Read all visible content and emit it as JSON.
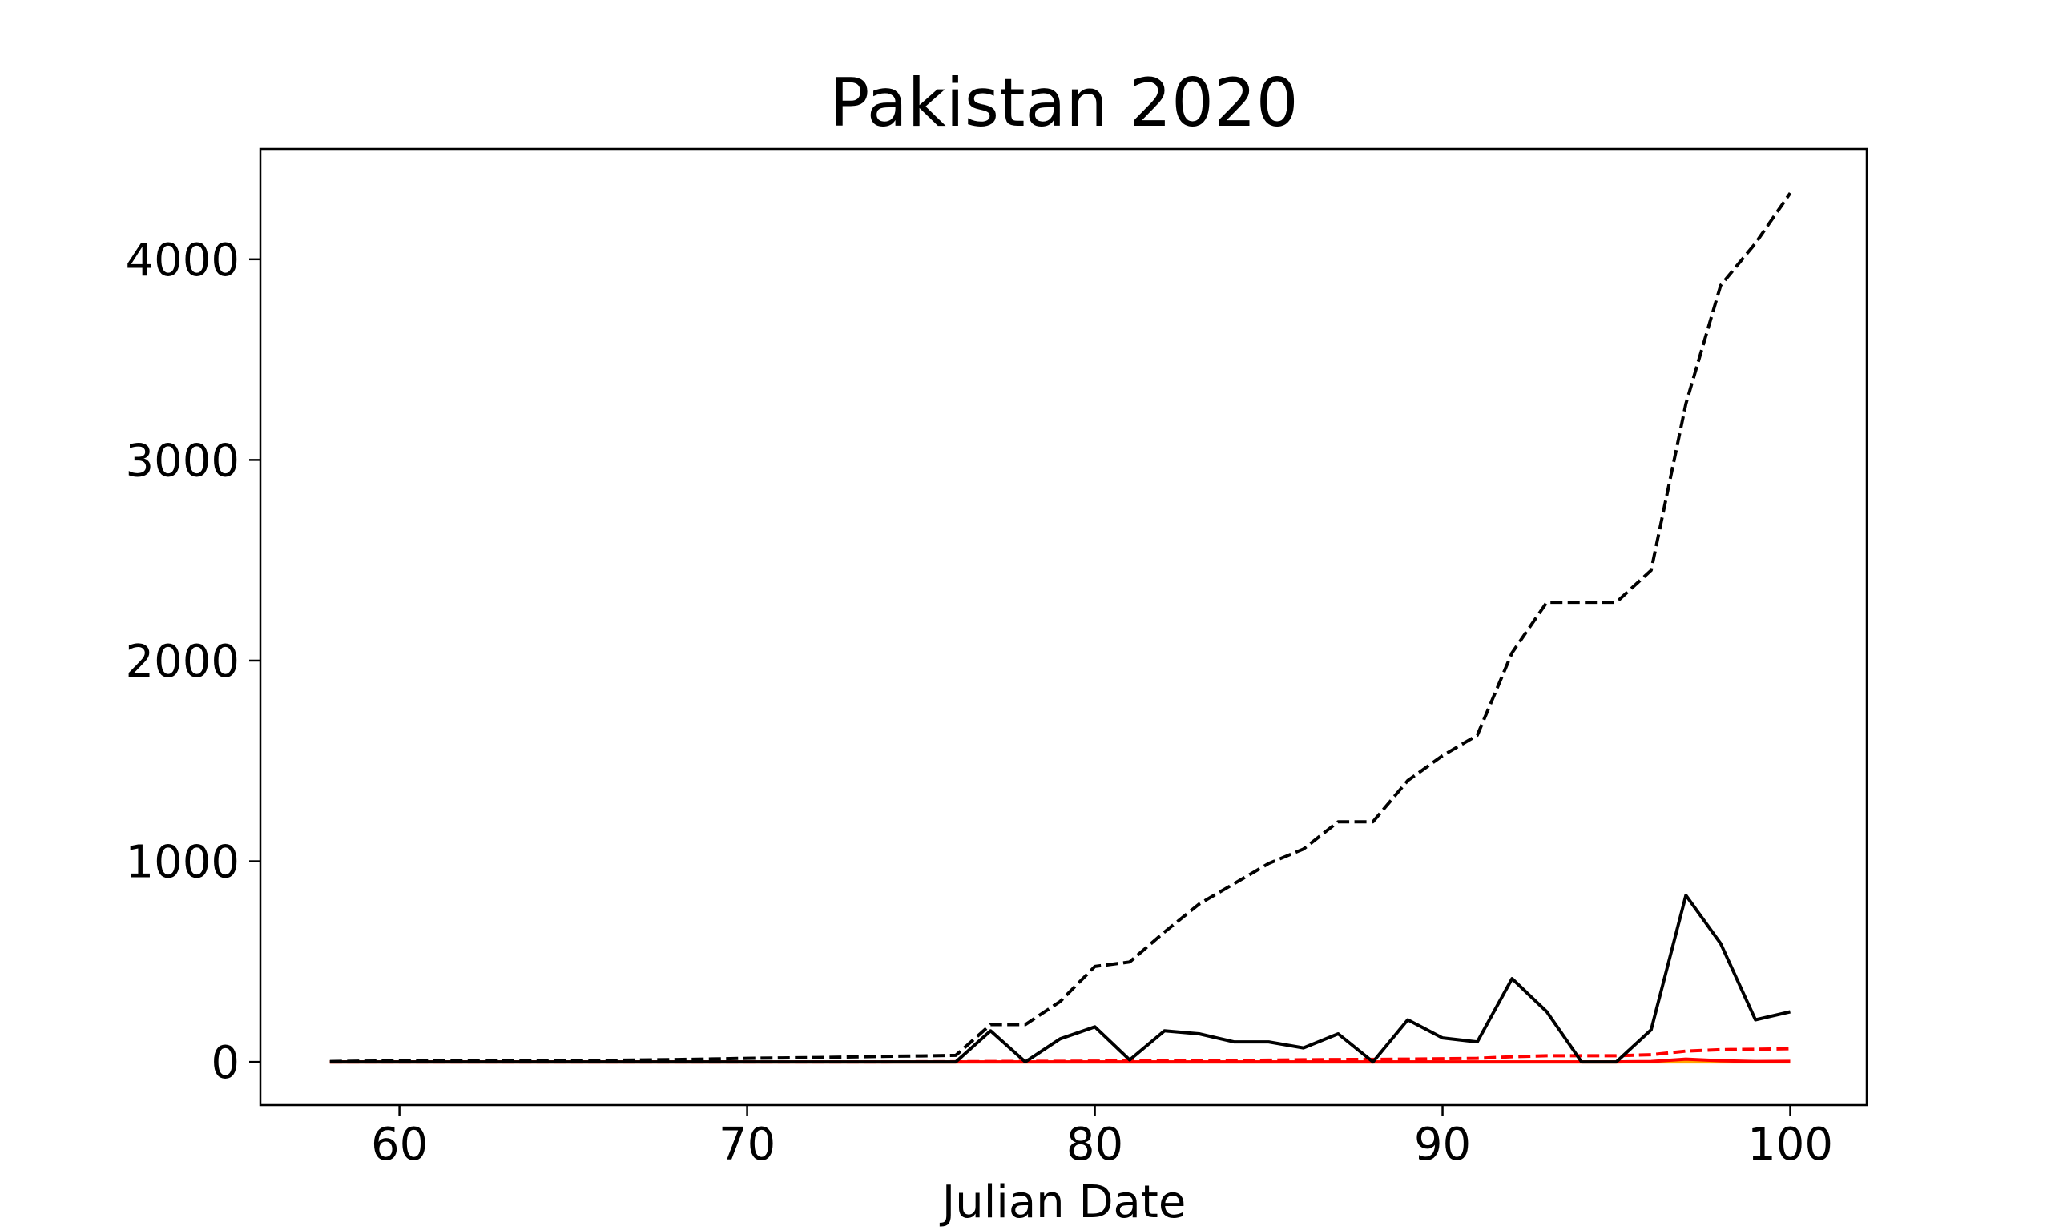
{
  "chart_data": {
    "type": "line",
    "title": "Pakistan 2020",
    "xlabel": "Julian Date",
    "ylabel": "",
    "xlim": [
      56,
      102.2
    ],
    "ylim": [
      -215,
      4550
    ],
    "xticks": [
      60,
      70,
      80,
      90,
      100
    ],
    "yticks": [
      0,
      1000,
      2000,
      3000,
      4000
    ],
    "grid": false,
    "legend": "none",
    "x": [
      58,
      59,
      60,
      61,
      62,
      63,
      64,
      65,
      66,
      67,
      68,
      69,
      70,
      71,
      72,
      73,
      74,
      75,
      76,
      77,
      78,
      79,
      80,
      81,
      82,
      83,
      84,
      85,
      86,
      87,
      88,
      89,
      90,
      91,
      92,
      93,
      94,
      95,
      96,
      97,
      98,
      99,
      100
    ],
    "series": [
      {
        "color": "#000000",
        "dash": true,
        "values": [
          2,
          4,
          5,
          5,
          6,
          6,
          6,
          7,
          8,
          10,
          12,
          15,
          18,
          20,
          22,
          25,
          28,
          30,
          33,
          186,
          186,
          301,
          476,
          498,
          647,
          787,
          888,
          989,
          1061,
          1197,
          1197,
          1402,
          1526,
          1628,
          2039,
          2291,
          2291,
          2291,
          2450,
          3280,
          3870,
          4080,
          4330
        ]
      },
      {
        "color": "#000000",
        "dash": false,
        "values": [
          0,
          0,
          0,
          0,
          0,
          0,
          0,
          0,
          0,
          0,
          0,
          0,
          0,
          0,
          0,
          0,
          0,
          0,
          0,
          155,
          0,
          115,
          175,
          10,
          155,
          140,
          100,
          100,
          70,
          140,
          0,
          210,
          120,
          100,
          415,
          250,
          0,
          0,
          160,
          830,
          590,
          210,
          250
        ]
      },
      {
        "color": "#ff0000",
        "dash": true,
        "values": [
          0,
          0,
          0,
          0,
          0,
          0,
          0,
          0,
          0,
          0,
          0,
          0,
          0,
          0,
          0,
          0,
          0,
          1,
          1,
          2,
          3,
          3,
          4,
          5,
          6,
          7,
          8,
          9,
          11,
          12,
          13,
          14,
          16,
          18,
          26,
          31,
          31,
          31,
          36,
          54,
          61,
          63,
          66
        ]
      },
      {
        "color": "#ff0000",
        "dash": false,
        "values": [
          0,
          0,
          0,
          0,
          0,
          0,
          0,
          0,
          0,
          0,
          0,
          0,
          0,
          0,
          0,
          0,
          0,
          0,
          0,
          0,
          0,
          0,
          0,
          0,
          0,
          0,
          0,
          0,
          0,
          0,
          0,
          0,
          0,
          0,
          0,
          0,
          0,
          0,
          2,
          14,
          6,
          2,
          3
        ]
      },
      {
        "color": "#ffa500",
        "dash": false,
        "values": [
          0,
          0,
          0,
          0,
          0,
          0,
          0,
          0,
          0,
          0,
          0,
          0,
          0,
          0,
          0,
          0,
          0,
          0,
          0,
          0,
          0,
          0,
          0,
          0,
          0,
          0,
          0,
          0,
          0,
          0,
          0,
          0,
          0,
          0,
          0,
          0,
          0,
          0,
          0,
          0,
          0,
          0,
          0
        ]
      }
    ]
  }
}
